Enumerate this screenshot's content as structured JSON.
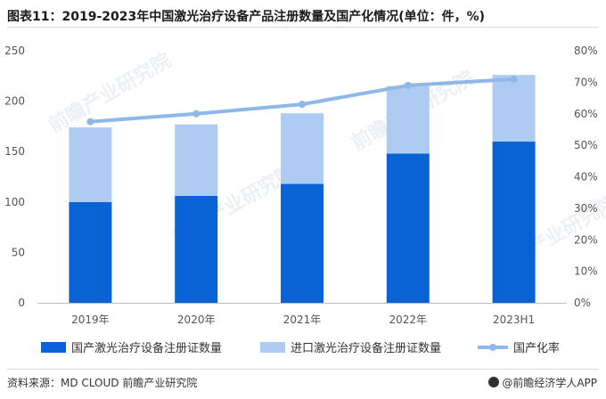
{
  "title": "图表11：2019-2023年中国激光治疗设备产品注册数量及国产化情况(单位：件，%)",
  "source": "资料来源：MD CLOUD 前瞻产业研究院",
  "brand": "@前瞻经济学人APP",
  "colors": {
    "domestic": "#0a63d4",
    "imported": "#aecbf2",
    "rate": "#8db8e8",
    "axis_text": "#555555",
    "grid": "#e6e6e6"
  },
  "chart_data": {
    "type": "bar",
    "stacked": true,
    "categories": [
      "2019年",
      "2020年",
      "2021年",
      "2022年",
      "2023H1"
    ],
    "series": [
      {
        "name": "国产激光治疗设备注册证数量",
        "kind": "bar",
        "values": [
          100,
          106,
          118,
          148,
          160
        ]
      },
      {
        "name": "进口激光治疗设备注册证数量",
        "kind": "bar",
        "values": [
          74,
          71,
          70,
          67,
          66
        ]
      },
      {
        "name": "国产化率",
        "kind": "line",
        "axis": "right",
        "values": [
          57.5,
          60,
          63,
          69,
          71
        ]
      }
    ],
    "y_left": {
      "lim": [
        0,
        250
      ],
      "ticks": [
        "0",
        "50",
        "100",
        "150",
        "200",
        "250"
      ]
    },
    "y_right": {
      "lim": [
        0,
        80
      ],
      "ticks": [
        "0%",
        "10%",
        "20%",
        "30%",
        "40%",
        "50%",
        "60%",
        "70%",
        "80%"
      ]
    },
    "grid": false,
    "legend_position": "bottom"
  }
}
